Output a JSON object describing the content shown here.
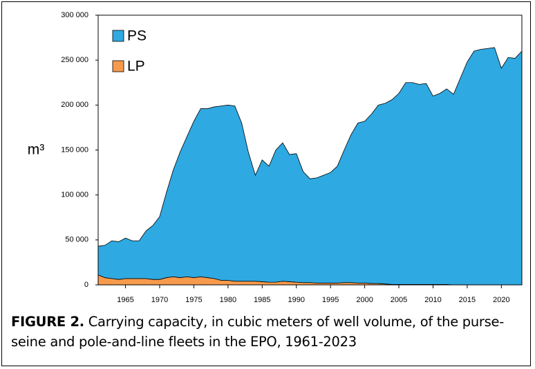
{
  "chart_data": {
    "type": "area",
    "ylabel": "m³",
    "caption_label": "FIGURE 2.",
    "caption": "Carrying capacity, in cubic meters of well volume, of the purse-seine and pole-and-line fleets in the EPO, 1961-2023",
    "stacked": true,
    "legend": "upper left",
    "x": [
      1961,
      1962,
      1963,
      1964,
      1965,
      1966,
      1967,
      1968,
      1969,
      1970,
      1971,
      1972,
      1973,
      1974,
      1975,
      1976,
      1977,
      1978,
      1979,
      1980,
      1981,
      1982,
      1983,
      1984,
      1985,
      1986,
      1987,
      1988,
      1989,
      1990,
      1991,
      1992,
      1993,
      1994,
      1995,
      1996,
      1997,
      1998,
      1999,
      2000,
      2001,
      2002,
      2003,
      2004,
      2005,
      2006,
      2007,
      2008,
      2009,
      2010,
      2011,
      2012,
      2013,
      2014,
      2015,
      2016,
      2017,
      2018,
      2019,
      2020,
      2021,
      2022,
      2023
    ],
    "series": [
      {
        "name": "PS",
        "color": "#2fa9e1",
        "values": [
          32000,
          36000,
          42000,
          42000,
          45000,
          42000,
          42000,
          53000,
          60000,
          70000,
          95000,
          119000,
          140000,
          156000,
          174000,
          187000,
          188000,
          191000,
          194000,
          195000,
          195000,
          176000,
          143000,
          118000,
          135500,
          129000,
          147000,
          154000,
          141500,
          143000,
          123500,
          115500,
          117000,
          120000,
          123000,
          130000,
          147500,
          164500,
          178000,
          180000,
          188500,
          198500,
          201000,
          205500,
          212500,
          224500,
          224500,
          222500,
          223500,
          209500,
          212500,
          217500,
          212000,
          230000,
          248000,
          260000,
          262000,
          263000,
          264000,
          241000,
          253000,
          252000,
          260000
        ]
      },
      {
        "name": "LP",
        "color": "#f79a4c",
        "values": [
          11000,
          8000,
          7000,
          6000,
          7000,
          7000,
          7000,
          7000,
          6000,
          6000,
          8000,
          9000,
          8000,
          9000,
          8000,
          9000,
          8000,
          7000,
          5000,
          5000,
          4000,
          4000,
          4000,
          4000,
          3500,
          3000,
          3000,
          4000,
          3500,
          3000,
          2500,
          2500,
          2000,
          2000,
          2000,
          2000,
          2500,
          2500,
          2000,
          2000,
          1500,
          1500,
          1000,
          500,
          500,
          500,
          500,
          500,
          500,
          500,
          500,
          500,
          0,
          0,
          0,
          0,
          0,
          0,
          0,
          0,
          0,
          0,
          0
        ]
      }
    ],
    "xlim": [
      1961,
      2023
    ],
    "xticks": [
      1965,
      1970,
      1975,
      1980,
      1985,
      1990,
      1995,
      2000,
      2005,
      2010,
      2015,
      2020
    ],
    "ylim": [
      0,
      300000
    ],
    "yticks": [
      0,
      {
        "value": 50000,
        "label": "50 000"
      },
      {
        "value": 100000,
        "label": "100 000"
      },
      {
        "value": 150000,
        "label": "150 000"
      },
      {
        "value": 200000,
        "label": "200 000"
      },
      {
        "value": 250000,
        "label": "250 000"
      },
      {
        "value": 300000,
        "label": "300 000"
      }
    ],
    "grid": false
  }
}
